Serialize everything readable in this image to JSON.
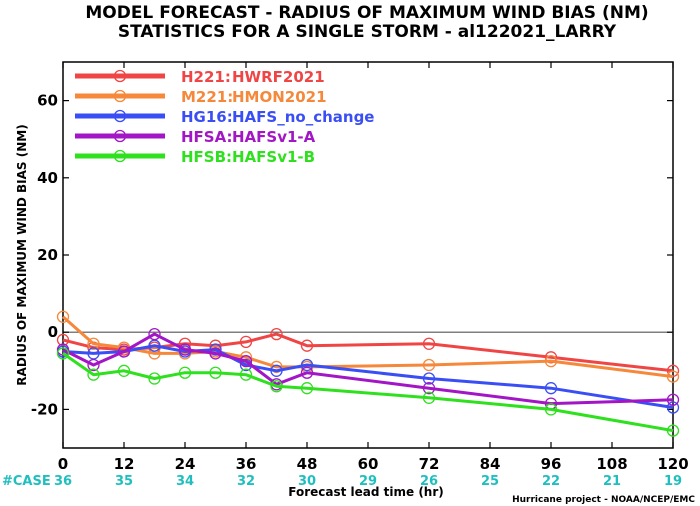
{
  "chart_data": {
    "type": "line",
    "title_line1": "MODEL FORECAST - RADIUS OF MAXIMUM WIND BIAS (NM)",
    "title_line2": "STATISTICS FOR A SINGLE STORM - al122021_LARRY",
    "xlabel": "Forecast lead time (hr)",
    "ylabel": "RADIUS OF MAXIMUM WIND BIAS (NM)",
    "credit": "Hurricane project - NOAA/NCEP/EMC",
    "case_label": "#CASE",
    "case_color": "#1fbfbf",
    "xlim": [
      0,
      120
    ],
    "ylim": [
      -30,
      70
    ],
    "x_ticks": [
      0,
      12,
      24,
      36,
      48,
      60,
      72,
      84,
      96,
      108,
      120
    ],
    "y_ticks": [
      -20,
      0,
      20,
      40,
      60
    ],
    "cases": [
      36,
      35,
      34,
      32,
      30,
      29,
      26,
      25,
      22,
      21,
      19
    ],
    "zero_line": true,
    "grid": false,
    "legend_position": "top-left",
    "series": [
      {
        "code": "H221:",
        "name": "HWRF2021",
        "color": "#f04545",
        "x": [
          0,
          6,
          12,
          18,
          24,
          30,
          36,
          42,
          48,
          72,
          96,
          120
        ],
        "values": [
          -2,
          -4,
          -4.5,
          -4,
          -3,
          -3.5,
          -2.5,
          -0.5,
          -3.5,
          -3,
          -6.5,
          -10
        ]
      },
      {
        "code": "M221:",
        "name": "HMON2021",
        "color": "#f5883a",
        "x": [
          0,
          6,
          12,
          18,
          24,
          30,
          36,
          42,
          48,
          72,
          96,
          120
        ],
        "values": [
          4,
          -3,
          -4,
          -5.5,
          -5.5,
          -5,
          -6.5,
          -9,
          -9,
          -8.5,
          -7.5,
          -11.5
        ]
      },
      {
        "code": "HG16:",
        "name": "HAFS_no_change",
        "color": "#3a4ef5",
        "x": [
          0,
          6,
          12,
          18,
          24,
          30,
          36,
          42,
          48,
          72,
          96,
          120
        ],
        "values": [
          -5,
          -5.5,
          -5,
          -3.5,
          -5,
          -4.5,
          -8.5,
          -10,
          -8.5,
          -12,
          -14.5,
          -19.5
        ]
      },
      {
        "code": "HFSA:",
        "name": "HAFSv1-A",
        "color": "#a216c6",
        "x": [
          0,
          6,
          12,
          18,
          24,
          30,
          36,
          42,
          48,
          72,
          96,
          120
        ],
        "values": [
          -4.5,
          -8.5,
          -5,
          -0.5,
          -4.5,
          -5.5,
          -7.5,
          -13.5,
          -10.5,
          -14.5,
          -18.5,
          -17.5
        ]
      },
      {
        "code": "HFSB:",
        "name": "HAFSv1-B",
        "color": "#2fe01e",
        "x": [
          0,
          6,
          12,
          18,
          24,
          30,
          36,
          42,
          48,
          72,
          96,
          120
        ],
        "values": [
          -5.5,
          -11,
          -10,
          -12,
          -10.5,
          -10.5,
          -11,
          -14,
          -14.5,
          -17,
          -20,
          -25.5
        ]
      }
    ]
  }
}
